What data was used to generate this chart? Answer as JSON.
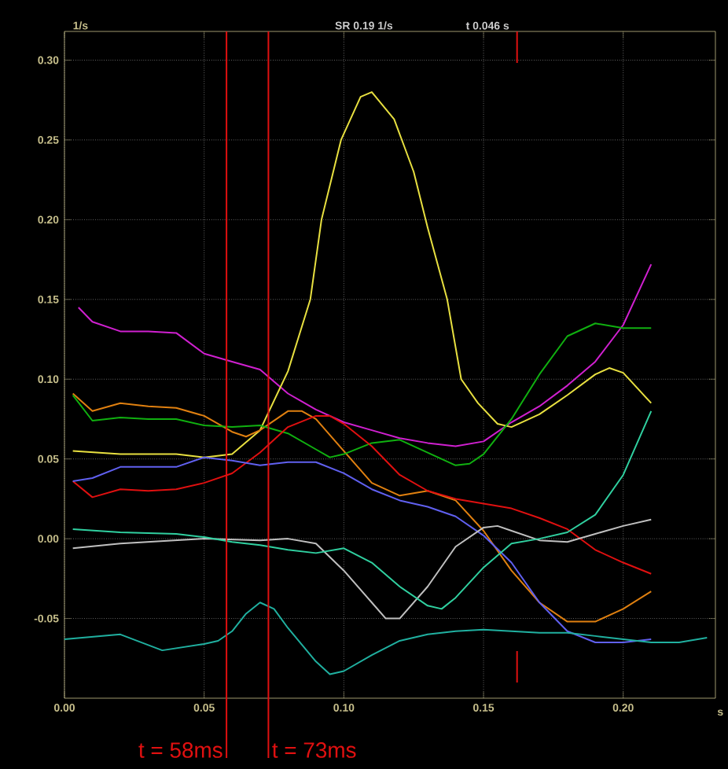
{
  "chart_data": {
    "type": "line",
    "ylabel": "1/s",
    "xlabel": "s",
    "annotations": [
      "SR 0.19 1/s",
      "t 0.046 s"
    ],
    "xlim": [
      0,
      0.233
    ],
    "ylim": [
      -0.1,
      0.318
    ],
    "xticks": [
      {
        "value": 0,
        "label": "0.00"
      },
      {
        "value": 0.05,
        "label": "0.05"
      },
      {
        "value": 0.1,
        "label": "0.10"
      },
      {
        "value": 0.15,
        "label": "0.15"
      },
      {
        "value": 0.2,
        "label": "0.20"
      }
    ],
    "yticks": [
      {
        "value": -0.05,
        "label": "-0.05"
      },
      {
        "value": 0,
        "label": "0.00"
      },
      {
        "value": 0.05,
        "label": "0.05"
      },
      {
        "value": 0.1,
        "label": "0.10"
      },
      {
        "value": 0.15,
        "label": "0.15"
      },
      {
        "value": 0.2,
        "label": "0.20"
      },
      {
        "value": 0.25,
        "label": "0.25"
      },
      {
        "value": 0.3,
        "label": "0.30"
      }
    ],
    "grid": true,
    "ref_lines": [
      {
        "axis": "x",
        "value": 0.058,
        "label": "t = 58ms",
        "color": "#e01010"
      },
      {
        "axis": "x",
        "value": 0.073,
        "label": "t = 73ms",
        "color": "#e01010"
      },
      {
        "axis": "x",
        "value": 0.162,
        "label": null,
        "color": "#e01010"
      }
    ],
    "series": [
      {
        "color": "#d020d0",
        "x": [
          0.005,
          0.01,
          0.02,
          0.03,
          0.04,
          0.05,
          0.06,
          0.07,
          0.08,
          0.09,
          0.1,
          0.11,
          0.12,
          0.13,
          0.14,
          0.15,
          0.16,
          0.17,
          0.18,
          0.19,
          0.2,
          0.21
        ],
        "values": [
          0.145,
          0.136,
          0.13,
          0.13,
          0.129,
          0.116,
          0.111,
          0.106,
          0.091,
          0.081,
          0.073,
          0.068,
          0.063,
          0.06,
          0.058,
          0.061,
          0.073,
          0.083,
          0.096,
          0.111,
          0.134,
          0.172
        ]
      },
      {
        "color": "#e8e040",
        "x": [
          0.003,
          0.02,
          0.04,
          0.05,
          0.06,
          0.07,
          0.08,
          0.088,
          0.092,
          0.099,
          0.106,
          0.11,
          0.118,
          0.125,
          0.13,
          0.137,
          0.142,
          0.148,
          0.155,
          0.16,
          0.17,
          0.18,
          0.19,
          0.195,
          0.2,
          0.21
        ],
        "values": [
          0.055,
          0.053,
          0.053,
          0.051,
          0.053,
          0.068,
          0.105,
          0.15,
          0.2,
          0.25,
          0.277,
          0.28,
          0.263,
          0.23,
          0.195,
          0.15,
          0.1,
          0.085,
          0.072,
          0.07,
          0.078,
          0.09,
          0.103,
          0.107,
          0.104,
          0.085
        ]
      },
      {
        "color": "#e08010",
        "x": [
          0.003,
          0.01,
          0.02,
          0.03,
          0.04,
          0.05,
          0.06,
          0.065,
          0.07,
          0.08,
          0.085,
          0.09,
          0.1,
          0.11,
          0.12,
          0.13,
          0.14,
          0.15,
          0.16,
          0.17,
          0.18,
          0.19,
          0.2,
          0.21
        ],
        "values": [
          0.091,
          0.08,
          0.085,
          0.083,
          0.082,
          0.077,
          0.067,
          0.064,
          0.068,
          0.08,
          0.08,
          0.075,
          0.055,
          0.035,
          0.027,
          0.03,
          0.024,
          0.005,
          -0.02,
          -0.04,
          -0.052,
          -0.052,
          -0.044,
          -0.033
        ]
      },
      {
        "color": "#10b010",
        "x": [
          0.003,
          0.01,
          0.02,
          0.03,
          0.04,
          0.05,
          0.06,
          0.07,
          0.08,
          0.09,
          0.095,
          0.1,
          0.11,
          0.12,
          0.13,
          0.14,
          0.145,
          0.15,
          0.16,
          0.17,
          0.18,
          0.19,
          0.2,
          0.21
        ],
        "values": [
          0.09,
          0.074,
          0.076,
          0.075,
          0.075,
          0.071,
          0.07,
          0.071,
          0.066,
          0.056,
          0.051,
          0.053,
          0.06,
          0.062,
          0.054,
          0.046,
          0.047,
          0.053,
          0.075,
          0.103,
          0.127,
          0.135,
          0.132,
          0.132
        ]
      },
      {
        "color": "#e01010",
        "x": [
          0.003,
          0.01,
          0.02,
          0.03,
          0.04,
          0.05,
          0.06,
          0.07,
          0.08,
          0.09,
          0.095,
          0.1,
          0.11,
          0.12,
          0.13,
          0.14,
          0.15,
          0.16,
          0.17,
          0.18,
          0.19,
          0.2,
          0.21
        ],
        "values": [
          0.036,
          0.026,
          0.031,
          0.03,
          0.031,
          0.035,
          0.041,
          0.054,
          0.07,
          0.077,
          0.077,
          0.072,
          0.058,
          0.04,
          0.03,
          0.025,
          0.022,
          0.019,
          0.013,
          0.006,
          -0.007,
          -0.015,
          -0.022
        ]
      },
      {
        "color": "#6060f0",
        "x": [
          0.003,
          0.01,
          0.02,
          0.03,
          0.04,
          0.05,
          0.06,
          0.07,
          0.08,
          0.09,
          0.1,
          0.11,
          0.12,
          0.13,
          0.14,
          0.15,
          0.16,
          0.17,
          0.18,
          0.19,
          0.2,
          0.21
        ],
        "values": [
          0.036,
          0.038,
          0.045,
          0.045,
          0.045,
          0.051,
          0.049,
          0.046,
          0.048,
          0.048,
          0.041,
          0.031,
          0.024,
          0.02,
          0.014,
          0.002,
          -0.015,
          -0.04,
          -0.058,
          -0.065,
          -0.065,
          -0.063
        ]
      },
      {
        "color": "#c0c0c0",
        "x": [
          0.003,
          0.02,
          0.05,
          0.07,
          0.08,
          0.09,
          0.1,
          0.11,
          0.115,
          0.12,
          0.13,
          0.14,
          0.15,
          0.155,
          0.16,
          0.17,
          0.18,
          0.19,
          0.2,
          0.21
        ],
        "values": [
          -0.006,
          -0.003,
          0.0,
          -0.001,
          0.0,
          -0.003,
          -0.02,
          -0.04,
          -0.05,
          -0.05,
          -0.03,
          -0.005,
          0.007,
          0.008,
          0.005,
          -0.001,
          -0.002,
          0.003,
          0.008,
          0.012
        ]
      },
      {
        "color": "#30d0a0",
        "x": [
          0.003,
          0.02,
          0.04,
          0.05,
          0.06,
          0.07,
          0.08,
          0.09,
          0.1,
          0.11,
          0.12,
          0.13,
          0.135,
          0.14,
          0.15,
          0.16,
          0.17,
          0.18,
          0.19,
          0.2,
          0.21
        ],
        "values": [
          0.006,
          0.004,
          0.003,
          0.001,
          -0.002,
          -0.004,
          -0.007,
          -0.009,
          -0.006,
          -0.015,
          -0.03,
          -0.042,
          -0.044,
          -0.037,
          -0.018,
          -0.003,
          0.0,
          0.004,
          0.015,
          0.04,
          0.08
        ]
      },
      {
        "color": "#20b0a0",
        "x": [
          0.0,
          0.02,
          0.035,
          0.05,
          0.055,
          0.06,
          0.065,
          0.07,
          0.075,
          0.08,
          0.09,
          0.095,
          0.1,
          0.11,
          0.12,
          0.13,
          0.14,
          0.15,
          0.16,
          0.17,
          0.18,
          0.19,
          0.2,
          0.21,
          0.22,
          0.23
        ],
        "values": [
          -0.063,
          -0.06,
          -0.07,
          -0.066,
          -0.064,
          -0.058,
          -0.047,
          -0.04,
          -0.044,
          -0.056,
          -0.077,
          -0.085,
          -0.083,
          -0.073,
          -0.064,
          -0.06,
          -0.058,
          -0.057,
          -0.058,
          -0.059,
          -0.059,
          -0.061,
          -0.063,
          -0.065,
          -0.065,
          -0.062
        ]
      }
    ]
  }
}
